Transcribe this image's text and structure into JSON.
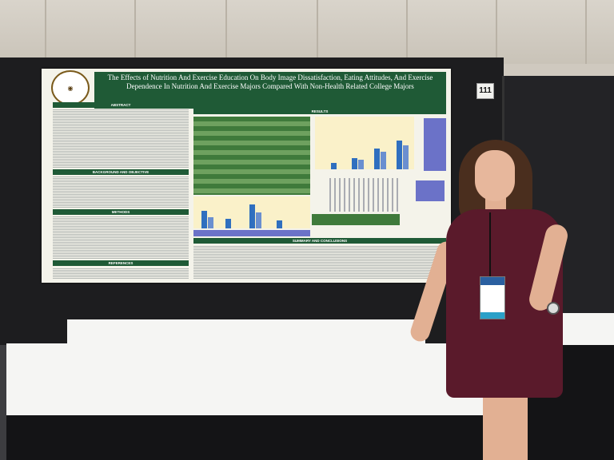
{
  "poster": {
    "title": "The Effects of Nutrition And Exercise Education On Body Image Dissatisfaction, Eating Attitudes, And Exercise Dependence In Nutrition And Exercise Majors Compared With Non-Health Related College Majors",
    "sections": [
      "ABSTRACT",
      "BACKGROUND AND OBJECTIVE",
      "METHODS",
      "REFERENCES",
      "RESULTS",
      "SUMMARY AND CONCLUSIONS"
    ]
  },
  "booth": {
    "number": "111"
  },
  "colors": {
    "poster_green": "#1f5a36",
    "dress": "#5a1a2b",
    "backdrop": "#1d1d1f"
  }
}
